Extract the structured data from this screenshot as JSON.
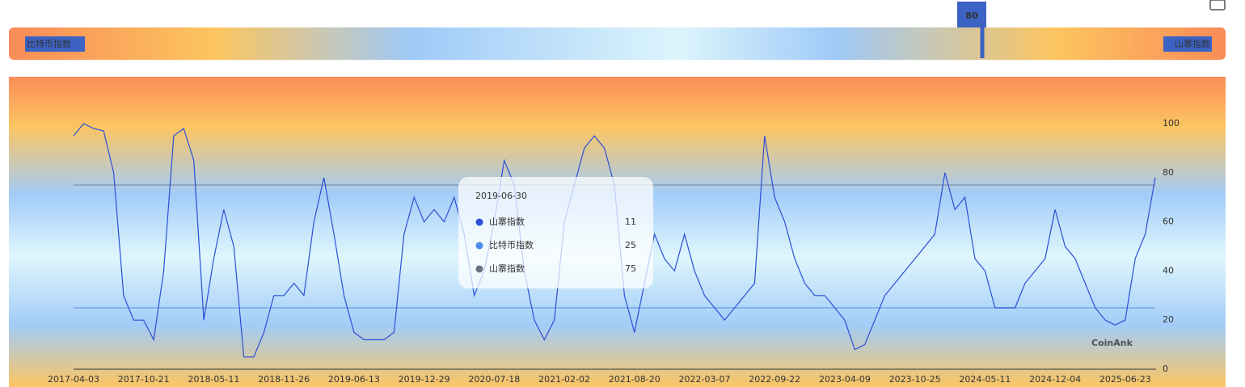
{
  "chart_data": {
    "type": "line",
    "visual_map": {
      "low_label": "比特币指数",
      "high_label": "山寨指数",
      "current": 80,
      "range": [
        0,
        100
      ]
    },
    "categories": [
      "2017-04-03",
      null,
      null,
      null,
      null,
      null,
      null,
      "2017-10-21",
      null,
      null,
      null,
      null,
      null,
      null,
      "2018-05-11",
      null,
      null,
      null,
      null,
      null,
      null,
      "2018-11-26",
      null,
      null,
      null,
      null,
      null,
      null,
      "2019-06-13",
      null,
      null,
      null,
      null,
      null,
      null,
      "2019-12-29",
      null,
      null,
      null,
      null,
      null,
      null,
      "2020-07-18",
      null,
      null,
      null,
      null,
      null,
      null,
      "2021-02-02",
      null,
      null,
      null,
      null,
      null,
      null,
      "2021-08-20",
      null,
      null,
      null,
      null,
      null,
      null,
      "2022-03-07",
      null,
      null,
      null,
      null,
      null,
      null,
      "2022-09-22",
      null,
      null,
      null,
      null,
      null,
      null,
      "2023-04-09",
      null,
      null,
      null,
      null,
      null,
      null,
      "2023-10-25",
      null,
      null,
      null,
      null,
      null,
      null,
      "2024-05-11",
      null,
      null,
      null,
      null,
      null,
      null,
      "2024-12-04",
      null,
      null,
      null,
      null,
      null,
      null,
      "2025-06-23",
      null,
      null,
      null
    ],
    "series": [
      {
        "name": "山寨指数",
        "color": "#2a4fd6",
        "values": [
          95,
          100,
          98,
          97,
          80,
          30,
          20,
          20,
          12,
          40,
          95,
          98,
          85,
          20,
          45,
          65,
          50,
          5,
          5,
          15,
          30,
          30,
          35,
          30,
          60,
          78,
          55,
          30,
          15,
          12,
          12,
          12,
          15,
          55,
          70,
          60,
          65,
          60,
          70,
          55,
          30,
          40,
          60,
          85,
          75,
          40,
          20,
          12,
          20,
          60,
          75,
          90,
          95,
          90,
          75,
          30,
          15,
          35,
          55,
          45,
          40,
          55,
          40,
          30,
          25,
          20,
          25,
          30,
          35,
          95,
          70,
          60,
          45,
          35,
          30,
          30,
          25,
          20,
          8,
          10,
          20,
          30,
          35,
          40,
          45,
          50,
          55,
          80,
          65,
          70,
          45,
          40,
          25,
          25,
          25,
          35,
          40,
          45,
          65,
          50,
          45,
          35,
          25,
          20,
          18,
          20,
          45,
          55,
          78
        ]
      }
    ],
    "thresholds": [
      {
        "value": 75,
        "color": "#7f8fa8"
      },
      {
        "value": 25,
        "color": "#6a9ee0"
      }
    ],
    "ylim": [
      0,
      100
    ],
    "yticks": [
      0,
      20,
      40,
      60,
      80,
      100
    ],
    "tooltip": {
      "date": "2019-06-30",
      "rows": [
        {
          "name": "山寨指数",
          "value": 11,
          "color": "#2a4fd6"
        },
        {
          "name": "比特币指数",
          "value": 25,
          "color": "#4a8be8"
        },
        {
          "name": "山寨指数",
          "value": 75,
          "color": "#6b7180"
        }
      ]
    },
    "watermark": "CoinAnk"
  }
}
